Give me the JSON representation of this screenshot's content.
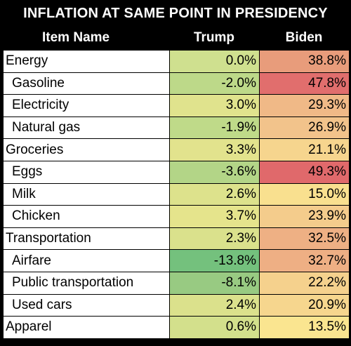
{
  "chart_data": {
    "type": "table",
    "title": "INFLATION AT SAME POINT IN PRESIDENCY",
    "columns": [
      "Item Name",
      "Trump",
      "Biden"
    ],
    "rows": [
      {
        "name": "Energy",
        "indent": false,
        "trump": "0.0%",
        "biden": "38.8%",
        "trump_color": "#cfe08f",
        "biden_color": "#e89c7b"
      },
      {
        "name": "Gasoline",
        "indent": true,
        "trump": "-2.0%",
        "biden": "47.8%",
        "trump_color": "#bdd989",
        "biden_color": "#e16e6d"
      },
      {
        "name": "Electricity",
        "indent": true,
        "trump": "3.0%",
        "biden": "29.3%",
        "trump_color": "#e0e38d",
        "biden_color": "#f0b987"
      },
      {
        "name": "Natural gas",
        "indent": true,
        "trump": "-1.9%",
        "biden": "26.9%",
        "trump_color": "#bfda89",
        "biden_color": "#f2c38b"
      },
      {
        "name": "Groceries",
        "indent": false,
        "trump": "3.3%",
        "biden": "21.1%",
        "trump_color": "#e2e38d",
        "biden_color": "#f6d58e"
      },
      {
        "name": "Eggs",
        "indent": true,
        "trump": "-3.6%",
        "biden": "49.3%",
        "trump_color": "#b3d587",
        "biden_color": "#e0696b"
      },
      {
        "name": "Milk",
        "indent": true,
        "trump": "2.6%",
        "biden": "15.0%",
        "trump_color": "#dde28c",
        "biden_color": "#f9e08f"
      },
      {
        "name": "Chicken",
        "indent": true,
        "trump": "3.7%",
        "biden": "23.9%",
        "trump_color": "#e5e48c",
        "biden_color": "#f4cc8c"
      },
      {
        "name": "Transportation",
        "indent": false,
        "trump": "2.3%",
        "biden": "32.5%",
        "trump_color": "#dae18c",
        "biden_color": "#eeb084"
      },
      {
        "name": "Airfare",
        "indent": true,
        "trump": "-13.8%",
        "biden": "32.7%",
        "trump_color": "#74c17d",
        "biden_color": "#eeaf84"
      },
      {
        "name": "Public transportation",
        "indent": true,
        "trump": "-8.1%",
        "biden": "22.2%",
        "trump_color": "#98ca82",
        "biden_color": "#f5d18d"
      },
      {
        "name": "Used cars",
        "indent": true,
        "trump": "2.4%",
        "biden": "20.9%",
        "trump_color": "#dbe18c",
        "biden_color": "#f6d68e"
      },
      {
        "name": "Apparel",
        "indent": false,
        "trump": "0.6%",
        "biden": "13.5%",
        "trump_color": "#d3e08c",
        "biden_color": "#fae590"
      }
    ]
  }
}
